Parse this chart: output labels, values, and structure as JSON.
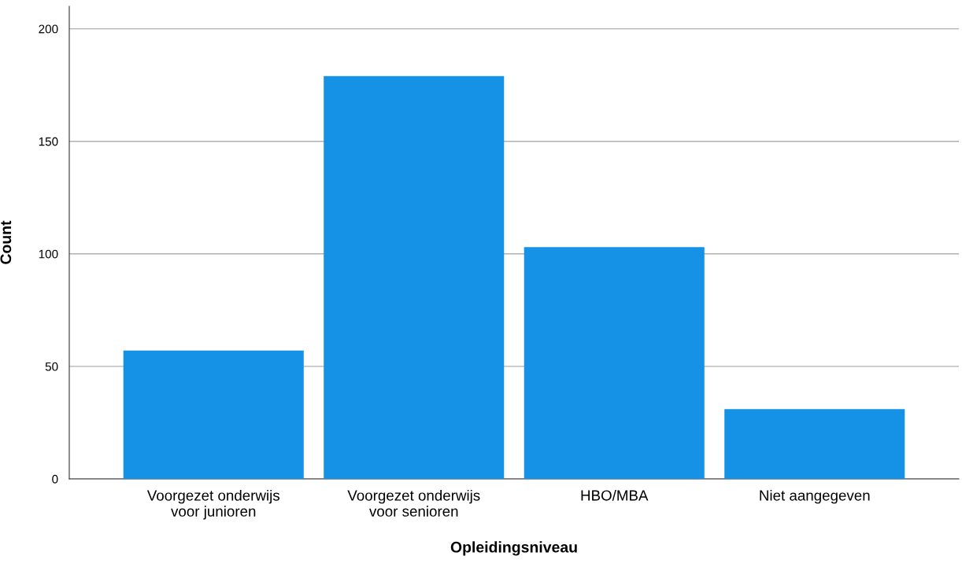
{
  "chart_data": {
    "type": "bar",
    "xlabel": "Opleidingsniveau",
    "ylabel": "Count",
    "categories": [
      "Voorgezet onderwijs\nvoor junioren",
      "Voorgezet onderwijs\nvoor senioren",
      "HBO/MBA",
      "Niet aangegeven"
    ],
    "values": [
      57,
      179,
      103,
      31
    ],
    "color": "#1591e6",
    "ylim": [
      0,
      210
    ],
    "yticks": [
      0,
      50,
      100,
      150,
      200
    ],
    "grid": "y",
    "legend": false
  }
}
